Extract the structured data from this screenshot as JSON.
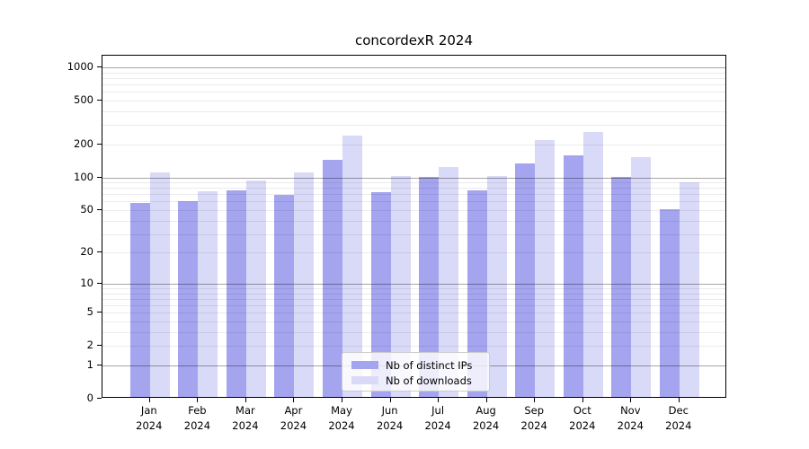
{
  "figure": {
    "title": "concordexR 2024"
  },
  "chart_data": {
    "type": "bar",
    "title": "concordexR 2024",
    "categories": [
      "Jan",
      "Feb",
      "Mar",
      "Apr",
      "May",
      "Jun",
      "Jul",
      "Aug",
      "Sep",
      "Oct",
      "Nov",
      "Dec"
    ],
    "category_year": "2024",
    "series": [
      {
        "name": "Nb of distinct IPs",
        "color": "#a4a4ef",
        "values": [
          56,
          58,
          73,
          67,
          138,
          71,
          97,
          73,
          130,
          152,
          98,
          49
        ]
      },
      {
        "name": "Nb of downloads",
        "color": "#d9d9f8",
        "values": [
          106,
          72,
          90,
          107,
          230,
          100,
          120,
          100,
          212,
          251,
          148,
          87
        ]
      }
    ],
    "xlabel": "",
    "ylabel": "",
    "y_scale": "log1p",
    "y_ticks": [
      0,
      1,
      2,
      5,
      10,
      20,
      50,
      100,
      200,
      500,
      1000
    ],
    "minor_grid_ticks": [
      2,
      3,
      4,
      5,
      6,
      7,
      8,
      9,
      20,
      30,
      40,
      50,
      60,
      70,
      80,
      90,
      200,
      300,
      400,
      500,
      600,
      700,
      800,
      900
    ],
    "major_grid_ticks": [
      1,
      10,
      100,
      1000
    ],
    "ylim": [
      0,
      1275
    ],
    "grid": true,
    "legend_position": "lower center"
  }
}
